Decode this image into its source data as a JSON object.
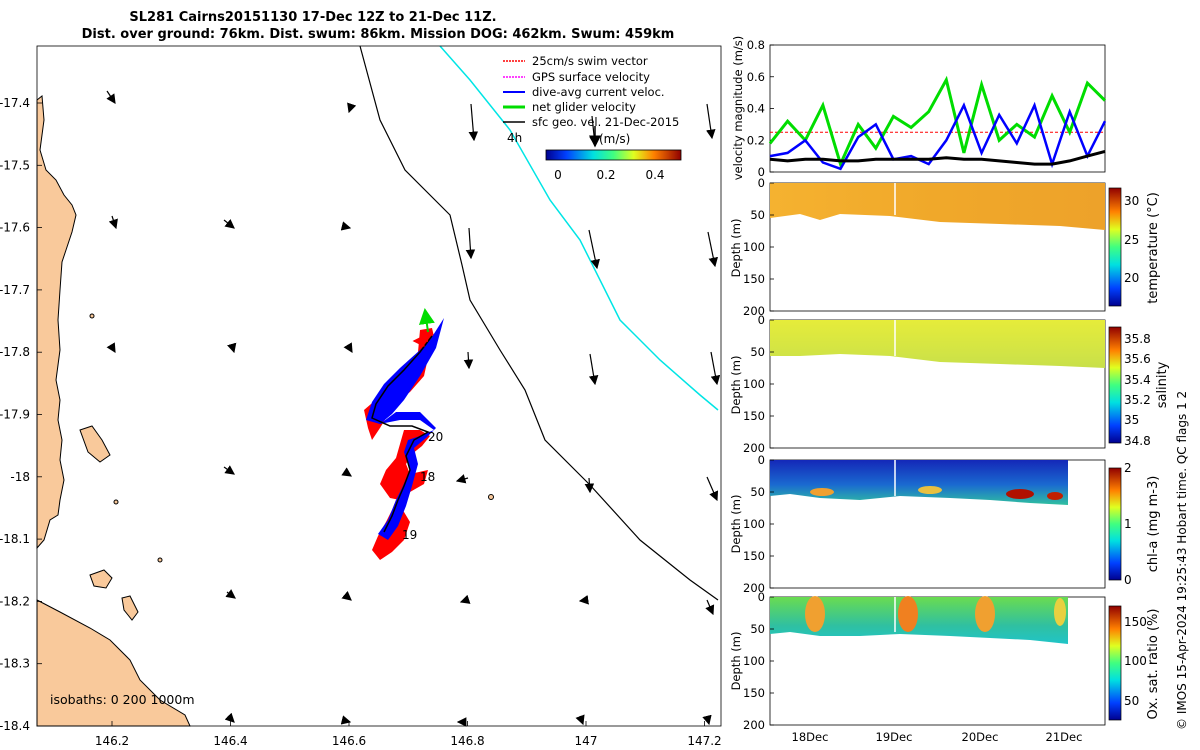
{
  "title_line1": "SL281 Cairns20151130 17-Dec 12Z to 21-Dec 11Z.",
  "title_line2": "Dist. over ground: 76km. Dist. swum: 86km. Mission DOG: 462km. Swum: 459km",
  "credit": "© IMOS 15-Apr-2024 19:25:43 Hobart time. QC flags 1  2",
  "colors": {
    "land": "#f9c99b",
    "swim_vector": "#ff0000",
    "gps_velocity": "#ff00ff",
    "dive_avg": "#0000ff",
    "net_glider": "#00dd00",
    "sfc_geo": "#000000",
    "isobath_200": "#000000",
    "isobath_1000": "#00e5e5"
  },
  "map": {
    "xticks": [
      "146.2",
      "146.4",
      "146.6",
      "146.8",
      "147",
      "147.2"
    ],
    "yticks": [
      "-17.4",
      "-17.5",
      "-17.6",
      "-17.7",
      "-17.8",
      "-17.9",
      "-18",
      "-18.1",
      "-18.2",
      "-18.3",
      "-18.4"
    ],
    "legend": [
      {
        "label": "25cm/s swim vector",
        "color": "#ff0000"
      },
      {
        "label": "GPS surface velocity",
        "color": "#ff00ff"
      },
      {
        "label": "dive-avg current veloc.",
        "color": "#0000ff"
      },
      {
        "label": "net glider velocity",
        "color": "#00dd00"
      },
      {
        "label": "sfc geo. vel. 21-Dec-2015",
        "color": "#000000"
      }
    ],
    "scale_label": "4h",
    "colorbar_label": "(m/s)",
    "colorbar_ticks": [
      "0",
      "0.2",
      "0.4"
    ],
    "isobaths_label": "isobaths: 0   200  1000m",
    "track_day_labels": [
      "20",
      "18",
      "19"
    ]
  },
  "chart_data": [
    {
      "type": "line",
      "title": "",
      "ylabel": "velocity magnitude (m/s)",
      "ylim": [
        0,
        0.8
      ],
      "yticks": [
        "0",
        "0.2",
        "0.4",
        "0.6",
        "0.8"
      ],
      "series": [
        {
          "name": "swim vector 25cm/s",
          "values": [
            0.25,
            0.25,
            0.25,
            0.25,
            0.25,
            0.25,
            0.25,
            0.25,
            0.25,
            0.25,
            0.25,
            0.25,
            0.25,
            0.25,
            0.25,
            0.25,
            0.25,
            0.25,
            0.25,
            0.25
          ]
        },
        {
          "name": "net glider velocity",
          "values": [
            0.18,
            0.32,
            0.2,
            0.42,
            0.05,
            0.3,
            0.15,
            0.35,
            0.28,
            0.38,
            0.58,
            0.12,
            0.55,
            0.2,
            0.3,
            0.22,
            0.48,
            0.25,
            0.56,
            0.45
          ]
        },
        {
          "name": "dive-avg current",
          "values": [
            0.1,
            0.12,
            0.2,
            0.06,
            0.02,
            0.22,
            0.3,
            0.08,
            0.1,
            0.05,
            0.2,
            0.42,
            0.12,
            0.36,
            0.18,
            0.42,
            0.05,
            0.38,
            0.1,
            0.32
          ]
        },
        {
          "name": "sfc geo velocity",
          "values": [
            0.08,
            0.07,
            0.08,
            0.08,
            0.07,
            0.07,
            0.08,
            0.08,
            0.08,
            0.08,
            0.09,
            0.08,
            0.08,
            0.07,
            0.06,
            0.05,
            0.05,
            0.07,
            0.1,
            0.13
          ]
        }
      ]
    },
    {
      "type": "heatmap",
      "ylabel": "Depth (m)",
      "cbar_label": "temperature (°C)",
      "cbar_ticks": [
        "20",
        "25",
        "30"
      ],
      "yticks": [
        "0",
        "50",
        "100",
        "150",
        "200"
      ]
    },
    {
      "type": "heatmap",
      "ylabel": "Depth (m)",
      "cbar_label": "salinity",
      "cbar_ticks": [
        "34.8",
        "35",
        "35.2",
        "35.4",
        "35.6",
        "35.8"
      ],
      "yticks": [
        "0",
        "50",
        "100",
        "150",
        "200"
      ]
    },
    {
      "type": "heatmap",
      "ylabel": "Depth (m)",
      "cbar_label": "chl-a (mg m-3)",
      "cbar_ticks": [
        "0",
        "1",
        "2"
      ],
      "yticks": [
        "0",
        "50",
        "100",
        "150",
        "200"
      ]
    },
    {
      "type": "heatmap",
      "ylabel": "Depth (m)",
      "cbar_label": "Ox. sat. ratio (%)",
      "cbar_ticks": [
        "50",
        "100",
        "150"
      ],
      "yticks": [
        "0",
        "50",
        "100",
        "150",
        "200"
      ],
      "xticks": [
        "18Dec",
        "19Dec",
        "20Dec",
        "21Dec"
      ]
    }
  ]
}
